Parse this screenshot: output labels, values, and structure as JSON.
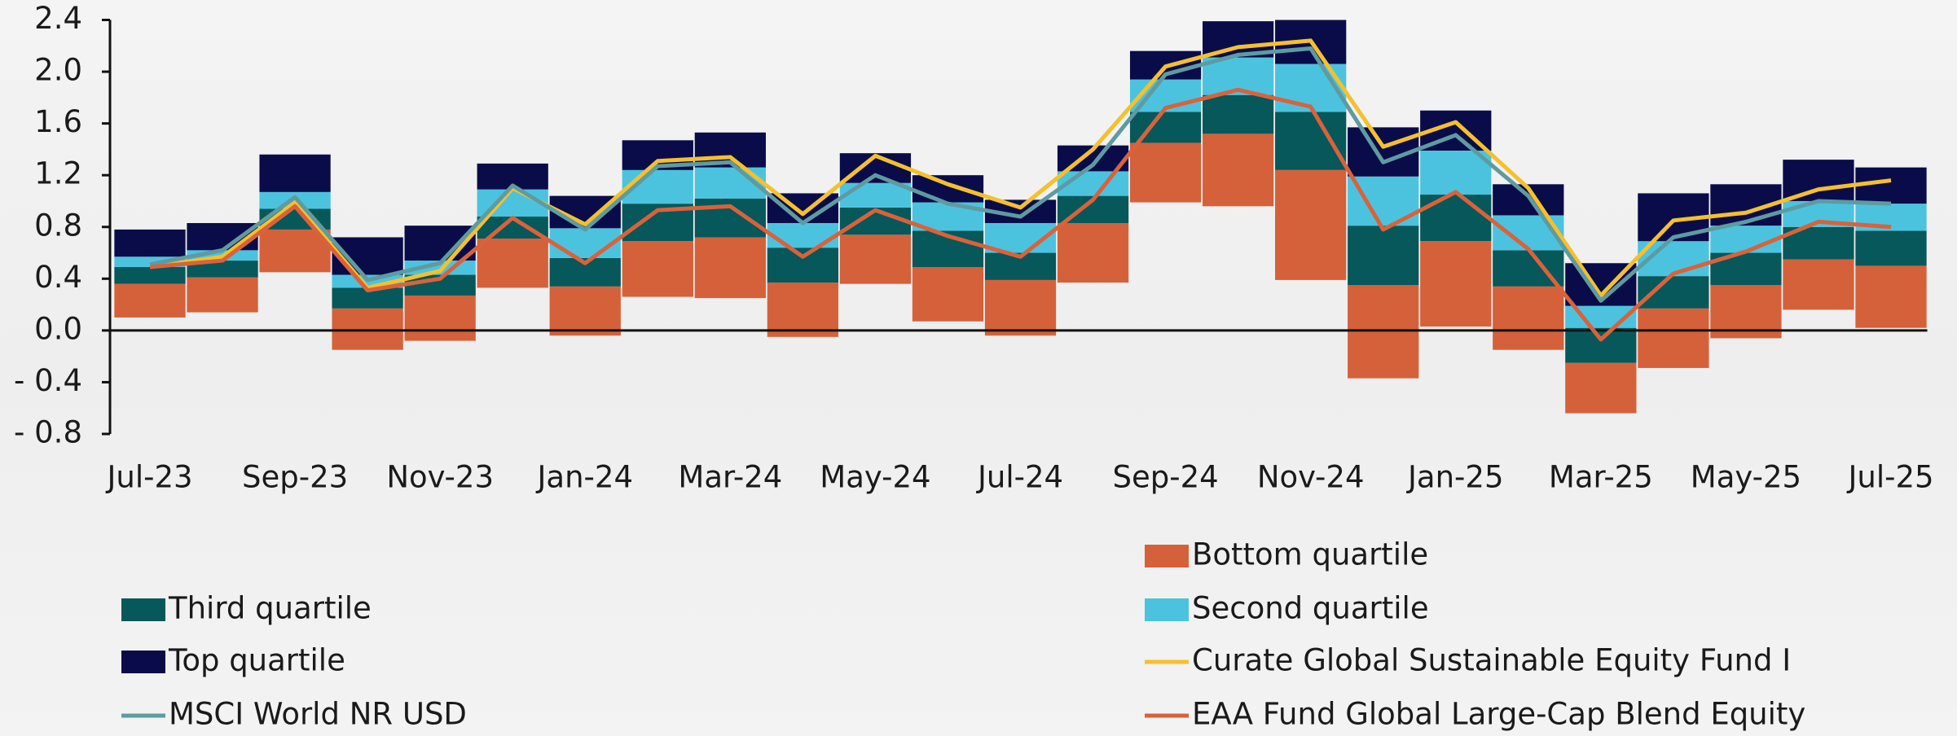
{
  "chart_data": {
    "type": "floating_stacked_bar_line",
    "categories": [
      "Jul-23",
      null,
      "Sep-23",
      null,
      "Nov-23",
      null,
      "Jan-24",
      null,
      "Mar-24",
      null,
      "May-24",
      null,
      "Jul-24",
      null,
      "Sep-24",
      null,
      "Nov-24",
      null,
      "Jan-25",
      null,
      "Mar-25",
      null,
      "May-25",
      null,
      "Jul-25"
    ],
    "bar_base": [
      0.1,
      0.14,
      0.45,
      -0.15,
      -0.08,
      0.33,
      -0.04,
      0.26,
      0.25,
      -0.05,
      0.36,
      0.07,
      -0.04,
      0.37,
      0.99,
      0.96,
      0.39,
      -0.37,
      0.03,
      -0.15,
      -0.64,
      -0.29,
      -0.06,
      0.16,
      0.02
    ],
    "series": [
      {
        "name": "Bottom quartile",
        "color": "#d4613a",
        "kind": "bar",
        "values": [
          0.26,
          0.27,
          0.33,
          0.32,
          0.35,
          0.38,
          0.38,
          0.43,
          0.47,
          0.42,
          0.38,
          0.42,
          0.43,
          0.46,
          0.46,
          0.56,
          0.85,
          0.72,
          0.66,
          0.49,
          0.39,
          0.46,
          0.41,
          0.39,
          0.48
        ]
      },
      {
        "name": "Third quartile",
        "color": "#07585a",
        "kind": "bar",
        "values": [
          0.13,
          0.13,
          0.16,
          0.16,
          0.16,
          0.17,
          0.22,
          0.29,
          0.3,
          0.27,
          0.21,
          0.28,
          0.21,
          0.21,
          0.24,
          0.3,
          0.45,
          0.46,
          0.36,
          0.28,
          0.27,
          0.25,
          0.25,
          0.25,
          0.27
        ]
      },
      {
        "name": "Second quartile",
        "color": "#4bc3df",
        "kind": "bar",
        "values": [
          0.08,
          0.08,
          0.13,
          0.1,
          0.11,
          0.21,
          0.23,
          0.26,
          0.24,
          0.19,
          0.19,
          0.22,
          0.23,
          0.19,
          0.25,
          0.29,
          0.37,
          0.38,
          0.34,
          0.27,
          0.17,
          0.27,
          0.21,
          0.2,
          0.21
        ]
      },
      {
        "name": "Top quartile",
        "color": "#0a0c4a",
        "kind": "bar",
        "values": [
          0.21,
          0.21,
          0.29,
          0.29,
          0.27,
          0.2,
          0.25,
          0.23,
          0.27,
          0.23,
          0.23,
          0.21,
          0.18,
          0.2,
          0.22,
          0.28,
          0.34,
          0.38,
          0.31,
          0.24,
          0.33,
          0.37,
          0.32,
          0.32,
          0.28
        ]
      },
      {
        "name": "Curate Global Sustainable Equity Fund I",
        "color": "#f5c02c",
        "kind": "line",
        "values": [
          0.49,
          0.57,
          0.99,
          0.33,
          0.46,
          1.1,
          0.82,
          1.31,
          1.34,
          0.9,
          1.35,
          1.13,
          0.95,
          1.4,
          2.04,
          2.19,
          2.24,
          1.42,
          1.61,
          1.1,
          0.27,
          0.85,
          0.91,
          1.09,
          1.16
        ]
      },
      {
        "name": "MSCI World NR USD",
        "color": "#5e9ba1",
        "kind": "line",
        "values": [
          0.51,
          0.62,
          1.03,
          0.39,
          0.52,
          1.12,
          0.78,
          1.27,
          1.3,
          0.83,
          1.2,
          0.98,
          0.88,
          1.28,
          1.98,
          2.13,
          2.18,
          1.3,
          1.51,
          1.04,
          0.23,
          0.72,
          0.84,
          1.0,
          0.98
        ]
      },
      {
        "name": "EAA Fund Global Large-Cap Blend Equity",
        "color": "#d9623b",
        "kind": "line",
        "values": [
          0.49,
          0.54,
          0.96,
          0.31,
          0.4,
          0.87,
          0.52,
          0.93,
          0.96,
          0.57,
          0.93,
          0.73,
          0.57,
          1.01,
          1.72,
          1.86,
          1.73,
          0.78,
          1.07,
          0.63,
          -0.07,
          0.44,
          0.61,
          0.84,
          0.8
        ]
      }
    ],
    "ylim": [
      -0.8,
      2.4
    ],
    "yticks": [
      {
        "value": -0.8,
        "label": "- 0.8"
      },
      {
        "value": -0.4,
        "label": "- 0.4"
      },
      {
        "value": 0,
        "label": "0.0"
      },
      0.4,
      0.8,
      1.2,
      1.6,
      {
        "value": 2,
        "label": "2.0"
      },
      2.4
    ]
  }
}
